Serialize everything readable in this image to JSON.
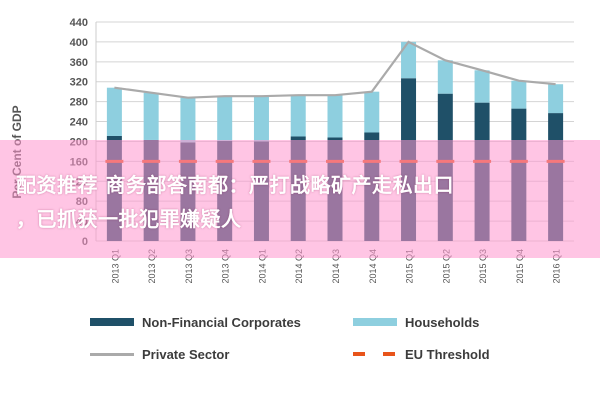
{
  "chart_data": {
    "type": "bar",
    "ylabel": "Per Cent of GDP",
    "ylim": [
      0,
      440
    ],
    "yticks": [
      0,
      40,
      80,
      120,
      160,
      200,
      240,
      280,
      320,
      360,
      400,
      440
    ],
    "categories": [
      "2013 Q1",
      "2013 Q2",
      "2013 Q3",
      "2013 Q4",
      "2014 Q1",
      "2014 Q2",
      "2014 Q3",
      "2014 Q4",
      "2015 Q1",
      "2015 Q2",
      "2015 Q3",
      "2015 Q4",
      "2016 Q1"
    ],
    "series": [
      {
        "name": "Non-Financial Corporates",
        "kind": "bar",
        "color": "#1f5068",
        "values": [
          211,
          203,
          198,
          201,
          200,
          210,
          208,
          218,
          327,
          296,
          278,
          266,
          257
        ]
      },
      {
        "name": "Households",
        "kind": "bar",
        "color": "#8ecfdf",
        "values": [
          97,
          95,
          90,
          90,
          91,
          83,
          85,
          82,
          73,
          67,
          65,
          56,
          58
        ]
      },
      {
        "name": "Private Sector",
        "kind": "line",
        "color": "#aaaaaa",
        "values": [
          308,
          298,
          288,
          291,
          291,
          293,
          293,
          300,
          400,
          363,
          343,
          322,
          315
        ]
      },
      {
        "name": "EU Threshold",
        "kind": "dashed-line",
        "color": "#e8541a",
        "values": [
          160,
          160,
          160,
          160,
          160,
          160,
          160,
          160,
          160,
          160,
          160,
          160,
          160
        ]
      }
    ],
    "grid": true,
    "legend": "bottom"
  },
  "overlay": {
    "banner_line1": "配资推荐 商务部答南都：严打战略矿产走私出口",
    "banner_line2": "，已抓获一批犯罪嫌疑人"
  }
}
